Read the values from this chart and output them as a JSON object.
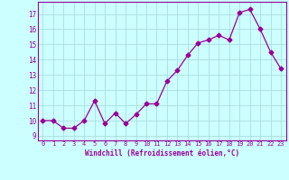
{
  "x": [
    0,
    1,
    2,
    3,
    4,
    5,
    6,
    7,
    8,
    9,
    10,
    11,
    12,
    13,
    14,
    15,
    16,
    17,
    18,
    19,
    20,
    21,
    22,
    23
  ],
  "y": [
    10.0,
    10.0,
    9.5,
    9.5,
    10.0,
    11.3,
    9.8,
    10.5,
    9.8,
    10.4,
    11.1,
    11.1,
    12.6,
    13.3,
    14.3,
    15.1,
    15.3,
    15.6,
    15.3,
    17.1,
    17.3,
    16.0,
    14.5,
    13.4
  ],
  "line_color": "#990099",
  "marker": "D",
  "marker_size": 2.5,
  "bg_color": "#ccffff",
  "grid_color": "#aadddd",
  "xlabel": "Windchill (Refroidissement éolien,°C)",
  "ylabel_ticks": [
    9,
    10,
    11,
    12,
    13,
    14,
    15,
    16,
    17
  ],
  "xlim": [
    -0.5,
    23.5
  ],
  "ylim": [
    8.7,
    17.8
  ],
  "tick_color": "#990099",
  "label_color": "#990099",
  "font": "monospace"
}
